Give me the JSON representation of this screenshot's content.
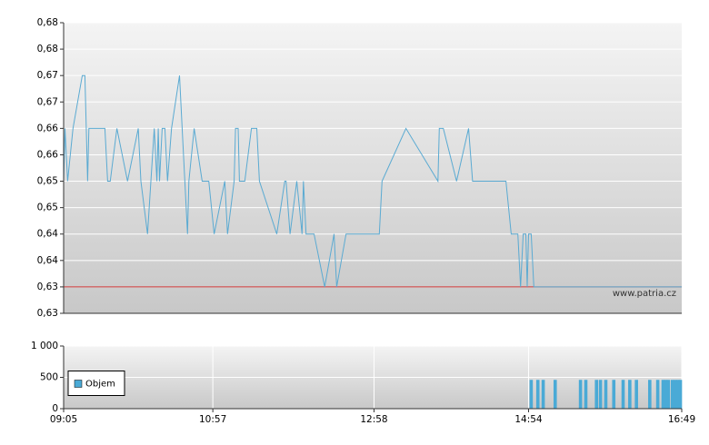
{
  "chart_data": [
    {
      "type": "line",
      "x": [
        "09:05",
        "09:06",
        "09:08",
        "09:12",
        "09:19",
        "09:21",
        "09:22",
        "09:23",
        "09:24",
        "09:36",
        "09:38",
        "09:40",
        "09:45",
        "09:53",
        "10:01",
        "10:03",
        "10:08",
        "10:13",
        "10:15",
        "10:16",
        "10:17",
        "10:19",
        "10:21",
        "10:23",
        "10:26",
        "10:32",
        "10:34",
        "10:38",
        "10:39",
        "10:43",
        "10:49",
        "10:54",
        "10:58",
        "11:06",
        "11:08",
        "11:13",
        "11:14",
        "11:16",
        "11:17",
        "11:21",
        "11:26",
        "11:30",
        "11:32",
        "11:45",
        "11:51",
        "11:52",
        "11:55",
        "12:00",
        "12:04",
        "12:05",
        "12:07",
        "12:13",
        "12:21",
        "12:28",
        "12:30",
        "12:37",
        "13:02",
        "13:04",
        "13:22",
        "13:46",
        "13:47",
        "13:50",
        "14:00",
        "14:09",
        "14:12",
        "14:37",
        "14:41",
        "14:46",
        "14:48",
        "14:50",
        "14:52",
        "14:53",
        "14:54",
        "14:56",
        "14:58",
        "16:49"
      ],
      "values": [
        0.65,
        0.66,
        0.65,
        0.66,
        0.67,
        0.67,
        0.66,
        0.65,
        0.66,
        0.66,
        0.65,
        0.65,
        0.66,
        0.65,
        0.66,
        0.65,
        0.64,
        0.66,
        0.65,
        0.66,
        0.65,
        0.66,
        0.66,
        0.65,
        0.66,
        0.67,
        0.66,
        0.64,
        0.65,
        0.66,
        0.65,
        0.65,
        0.64,
        0.65,
        0.64,
        0.65,
        0.66,
        0.66,
        0.65,
        0.65,
        0.66,
        0.66,
        0.65,
        0.64,
        0.65,
        0.65,
        0.64,
        0.65,
        0.64,
        0.65,
        0.64,
        0.64,
        0.63,
        0.64,
        0.63,
        0.64,
        0.64,
        0.65,
        0.66,
        0.65,
        0.66,
        0.66,
        0.65,
        0.66,
        0.65,
        0.65,
        0.64,
        0.64,
        0.63,
        0.64,
        0.64,
        0.63,
        0.64,
        0.64,
        0.63,
        0.63
      ],
      "color": "#5aaad2",
      "reference_line": {
        "value": 0.63,
        "color": "#cc3333"
      },
      "annotation": "www.patria.cz",
      "xlim": [
        "09:05",
        "16:49"
      ],
      "ylim": [
        0.625,
        0.68
      ],
      "yticks": [
        {
          "value": 0.625,
          "label": "0,63"
        },
        {
          "value": 0.63,
          "label": "0,63"
        },
        {
          "value": 0.635,
          "label": "0,64"
        },
        {
          "value": 0.64,
          "label": "0,64"
        },
        {
          "value": 0.645,
          "label": "0,65"
        },
        {
          "value": 0.65,
          "label": "0,65"
        },
        {
          "value": 0.655,
          "label": "0,66"
        },
        {
          "value": 0.66,
          "label": "0,66"
        },
        {
          "value": 0.665,
          "label": "0,67"
        },
        {
          "value": 0.67,
          "label": "0,67"
        },
        {
          "value": 0.675,
          "label": "0,68"
        },
        {
          "value": 0.68,
          "label": "0,68"
        }
      ],
      "grid": true
    },
    {
      "type": "bar",
      "x": [
        "14:56",
        "15:01",
        "15:05",
        "15:14",
        "15:33",
        "15:37",
        "15:45",
        "15:48",
        "15:52",
        "15:58",
        "16:05",
        "16:10",
        "16:15",
        "16:25",
        "16:31",
        "16:35",
        "16:37",
        "16:39",
        "16:42",
        "16:44",
        "16:46",
        "16:48"
      ],
      "series": [
        {
          "name": "Objem",
          "color": "#4aaad6",
          "values": [
            460,
            460,
            460,
            460,
            460,
            460,
            460,
            460,
            460,
            460,
            460,
            460,
            460,
            460,
            460,
            460,
            460,
            460,
            460,
            460,
            460,
            460
          ]
        }
      ],
      "legend": "left",
      "xlim": [
        "09:05",
        "16:49"
      ],
      "xticks": [
        "09:05",
        "10:57",
        "12:58",
        "14:54",
        "16:49"
      ],
      "ylim": [
        0,
        1000
      ],
      "yticks": [
        0,
        500,
        {
          "value": 1000,
          "label": "1 000"
        }
      ],
      "grid": true
    }
  ]
}
